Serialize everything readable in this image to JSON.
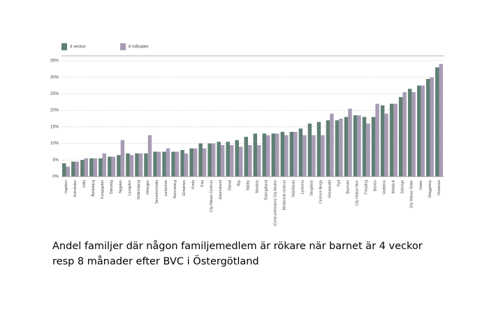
{
  "chart_data": {
    "type": "bar",
    "categories": [
      "Ingelsen",
      "Kolmården",
      "Välla",
      "Åtvidaberg",
      "Kungsgatan",
      "Ödeshög",
      "Nygatan",
      "Ljungsbro",
      "Söderköping",
      "Vilbergen",
      "Tannefors/Valla",
      "Lambohov",
      "Borensberg",
      "Ekholmen",
      "Kinda",
      "Kisa",
      "City Hälsan Centrum",
      "Johannelund",
      "Östvall",
      "Åby",
      "Mjölby",
      "Mantorp",
      "Östergötland",
      "(Centrumkliniken) City Akuten",
      "Medicinskt centrum",
      "Skärblacka",
      "Lyckorna",
      "Skogstorp",
      "Centrum Berga",
      "Vikbolandet",
      "Ryd",
      "Boxholm",
      "City Hälsan Norr",
      "Finspång",
      "Berken",
      "Vadstena",
      "Motala A",
      "Skäringe",
      "City Hälsan Söder",
      "Väster",
      "Skäggetorp",
      "Vikbolsvik"
    ],
    "series": [
      {
        "name": "4 veckor",
        "color": "#5f7f74",
        "values": [
          4,
          4.5,
          5,
          5.5,
          5.5,
          6,
          6.5,
          7,
          7,
          7,
          7.5,
          7.5,
          7.5,
          8,
          8.5,
          10,
          10,
          10.5,
          10.5,
          11,
          12,
          13,
          13,
          13,
          13.5,
          13.5,
          14.5,
          16,
          16.5,
          17,
          17,
          18,
          18.5,
          18,
          18,
          21.5,
          22,
          24,
          26.5,
          27.5,
          29.5,
          33
        ]
      },
      {
        "name": "8 månader",
        "color": "#a89bb5",
        "values": [
          3,
          4.5,
          5.5,
          5.5,
          7,
          6,
          11,
          6.5,
          7,
          12.5,
          7.5,
          8.5,
          7.5,
          7,
          8.5,
          8.5,
          10,
          9.5,
          9.5,
          9,
          9.5,
          9.5,
          12.5,
          13,
          12.5,
          13.5,
          12.5,
          12.5,
          12.5,
          19,
          17.5,
          20.5,
          18.5,
          16,
          22,
          19,
          22,
          25.5,
          25.5,
          27.5,
          30,
          34
        ]
      }
    ],
    "ylim": [
      0,
      35
    ],
    "yticks": [
      {
        "value": 0,
        "label": "0%"
      },
      {
        "value": 5,
        "label": "5%"
      },
      {
        "value": 10,
        "label": "10%"
      },
      {
        "value": 15,
        "label": "15%"
      },
      {
        "value": 20,
        "label": "20%"
      },
      {
        "value": 25,
        "label": "25%"
      },
      {
        "value": 30,
        "label": "30%"
      },
      {
        "value": 35,
        "label": "35%"
      }
    ],
    "grid": true,
    "legend": "top-left"
  },
  "caption": [
    "Andel familjer där någon familjemedlem är rökare  när barnet är 4 veckor",
    "resp 8 månader  efter BVC i Östergötland"
  ]
}
